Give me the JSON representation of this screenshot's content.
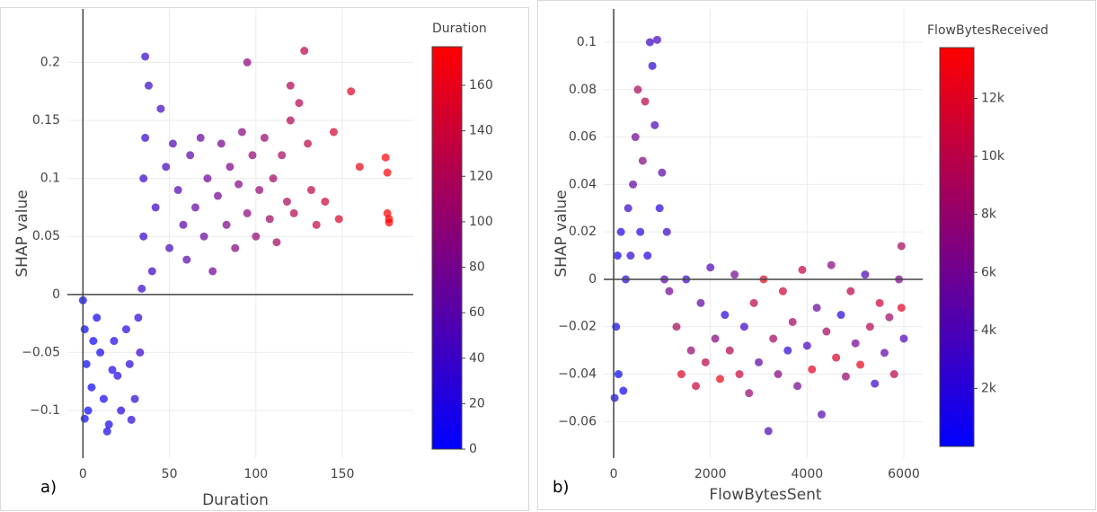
{
  "chart_data": [
    {
      "type": "scatter",
      "panel_label": "a)",
      "x_label": "Duration",
      "y_label": "SHAP value",
      "colorbar_title": "Duration",
      "xlim": [
        -9,
        191
      ],
      "ylim": [
        -0.141,
        0.246
      ],
      "xticks": [
        0,
        50,
        100,
        150
      ],
      "yticks": [
        {
          "value": -0.1,
          "label": "−0.1"
        },
        {
          "value": -0.05,
          "label": "−0.05"
        },
        0,
        0.05,
        0.1,
        0.15,
        0.2
      ],
      "grid": true,
      "zeroline": true,
      "colorscale": [
        "#0000ff",
        "#ff0000"
      ],
      "clim": [
        0,
        177
      ],
      "cticks": [
        0,
        20,
        40,
        60,
        80,
        100,
        120,
        140,
        160
      ],
      "series": [
        {
          "x": [
            0,
            1,
            2,
            3,
            1,
            5,
            8,
            10,
            12,
            15,
            18,
            20,
            22,
            25,
            27,
            30,
            32,
            33,
            14,
            6,
            28,
            17,
            34,
            35,
            35,
            36,
            36,
            38,
            40,
            42,
            45,
            48,
            50,
            52,
            55,
            58,
            60,
            62,
            65,
            68,
            70,
            72,
            75,
            78,
            80,
            83,
            85,
            88,
            90,
            92,
            95,
            95,
            98,
            100,
            102,
            105,
            108,
            110,
            112,
            115,
            118,
            120,
            120,
            122,
            125,
            128,
            130,
            132,
            135,
            140,
            145,
            148,
            155,
            160,
            175,
            176,
            176,
            177,
            177
          ],
          "values": [
            -0.005,
            -0.03,
            -0.06,
            -0.1,
            -0.107,
            -0.08,
            -0.02,
            -0.05,
            -0.09,
            -0.112,
            -0.04,
            -0.07,
            -0.1,
            -0.03,
            -0.06,
            -0.09,
            -0.02,
            -0.05,
            -0.118,
            -0.04,
            -0.108,
            -0.065,
            0.005,
            0.05,
            0.1,
            0.135,
            0.205,
            0.18,
            0.02,
            0.075,
            0.16,
            0.11,
            0.04,
            0.13,
            0.09,
            0.06,
            0.03,
            0.12,
            0.075,
            0.135,
            0.05,
            0.1,
            0.02,
            0.085,
            0.13,
            0.06,
            0.11,
            0.04,
            0.095,
            0.14,
            0.2,
            0.07,
            0.12,
            0.05,
            0.09,
            0.135,
            0.065,
            0.1,
            0.045,
            0.12,
            0.08,
            0.18,
            0.15,
            0.07,
            0.165,
            0.21,
            0.13,
            0.09,
            0.06,
            0.08,
            0.14,
            0.065,
            0.175,
            0.11,
            0.118,
            0.105,
            0.07,
            0.062,
            0.065
          ],
          "color_values": [
            0,
            1,
            2,
            3,
            1,
            5,
            8,
            10,
            12,
            15,
            18,
            20,
            22,
            25,
            27,
            30,
            32,
            33,
            14,
            6,
            28,
            17,
            34,
            35,
            35,
            36,
            36,
            38,
            40,
            42,
            45,
            48,
            50,
            52,
            55,
            58,
            60,
            62,
            65,
            68,
            70,
            72,
            75,
            78,
            80,
            83,
            85,
            88,
            90,
            92,
            95,
            95,
            98,
            100,
            102,
            105,
            108,
            110,
            112,
            115,
            118,
            120,
            120,
            122,
            125,
            128,
            130,
            132,
            135,
            140,
            145,
            148,
            155,
            160,
            175,
            176,
            176,
            177,
            177
          ]
        }
      ]
    },
    {
      "type": "scatter",
      "panel_label": "b)",
      "x_label": "FlowBytesSent",
      "y_label": "SHAP value",
      "colorbar_title": "FlowBytesReceived",
      "xlim": [
        -205,
        6390
      ],
      "ylim": [
        -0.0754,
        0.114
      ],
      "xticks": [
        0,
        2000,
        4000,
        6000
      ],
      "yticks": [
        {
          "value": -0.06,
          "label": "−0.06"
        },
        {
          "value": -0.04,
          "label": "−0.04"
        },
        {
          "value": -0.02,
          "label": "−0.02"
        },
        0,
        0.02,
        0.04,
        0.06,
        0.08,
        0.1
      ],
      "grid": true,
      "zeroline": true,
      "colorscale": [
        "#0000ff",
        "#ff0000"
      ],
      "clim": [
        0,
        13750
      ],
      "cticks": [
        {
          "value": 2000,
          "label": "2k"
        },
        {
          "value": 4000,
          "label": "4k"
        },
        {
          "value": 6000,
          "label": "6k"
        },
        {
          "value": 8000,
          "label": "8k"
        },
        {
          "value": 10000,
          "label": "10k"
        },
        {
          "value": 12000,
          "label": "12k"
        }
      ],
      "series": [
        {
          "x": [
            20,
            50,
            80,
            100,
            150,
            200,
            250,
            300,
            350,
            400,
            450,
            500,
            550,
            600,
            650,
            700,
            750,
            800,
            850,
            900,
            950,
            1000,
            1050,
            1100,
            1150,
            1300,
            1400,
            1500,
            1600,
            1700,
            1800,
            1900,
            2000,
            2100,
            2200,
            2300,
            2400,
            2500,
            2600,
            2700,
            2800,
            2900,
            3000,
            3100,
            3200,
            3300,
            3400,
            3500,
            3600,
            3700,
            3800,
            3900,
            4000,
            4100,
            4200,
            4300,
            4400,
            4500,
            4600,
            4700,
            4800,
            4900,
            5000,
            5100,
            5200,
            5300,
            5400,
            5500,
            5600,
            5700,
            5800,
            5900,
            5950,
            6000,
            5950
          ],
          "values": [
            -0.05,
            -0.02,
            0.01,
            -0.04,
            0.02,
            -0.047,
            0.0,
            0.03,
            0.01,
            0.04,
            0.06,
            0.08,
            0.02,
            0.05,
            0.075,
            0.01,
            0.1,
            0.09,
            0.065,
            0.101,
            0.03,
            0.045,
            0.0,
            0.02,
            -0.005,
            -0.02,
            -0.04,
            0.0,
            -0.03,
            -0.045,
            -0.01,
            -0.035,
            0.005,
            -0.025,
            -0.042,
            -0.015,
            -0.03,
            0.002,
            -0.04,
            -0.02,
            -0.048,
            -0.01,
            -0.035,
            0.0,
            -0.064,
            -0.025,
            -0.04,
            -0.005,
            -0.03,
            -0.018,
            -0.045,
            0.004,
            -0.028,
            -0.038,
            -0.012,
            -0.057,
            -0.022,
            0.006,
            -0.033,
            -0.015,
            -0.041,
            -0.005,
            -0.027,
            -0.036,
            0.002,
            -0.02,
            -0.044,
            -0.01,
            -0.031,
            -0.016,
            -0.04,
            0.0,
            0.014,
            -0.025,
            -0.012
          ],
          "color_values": [
            1000,
            500,
            800,
            300,
            1500,
            600,
            2000,
            3000,
            2500,
            5000,
            6000,
            9000,
            2000,
            7000,
            10000,
            1500,
            3000,
            2500,
            4000,
            3500,
            2000,
            5000,
            4500,
            3000,
            6000,
            9000,
            12000,
            3000,
            8000,
            11000,
            5000,
            10000,
            4000,
            7000,
            12500,
            2000,
            9500,
            6000,
            11000,
            3000,
            8000,
            10000,
            5000,
            12000,
            4000,
            9000,
            7000,
            11000,
            2500,
            8500,
            6000,
            10500,
            3500,
            12000,
            5500,
            4500,
            9000,
            7000,
            11500,
            2000,
            8000,
            10000,
            6000,
            12500,
            4000,
            9500,
            3000,
            11000,
            5000,
            8500,
            10000,
            6500,
            9000,
            4000,
            12000
          ]
        }
      ]
    }
  ]
}
